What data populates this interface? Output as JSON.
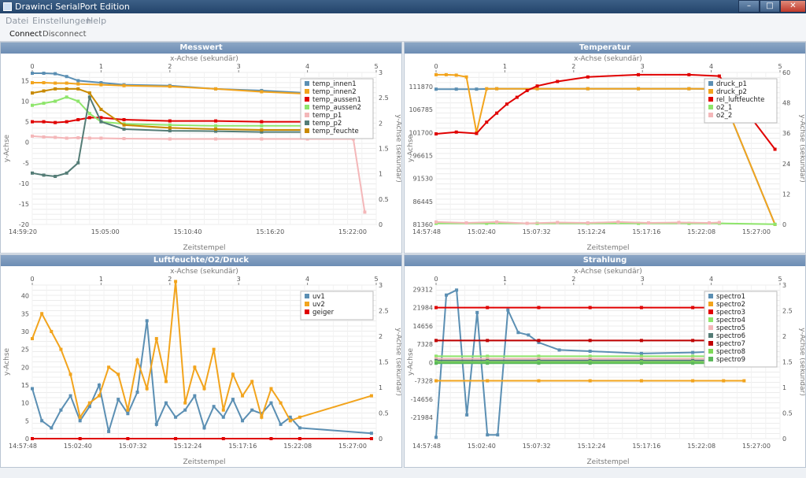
{
  "window": {
    "title": "Drawinci SerialPort Edition",
    "minimize": "–",
    "maximize": "□",
    "close": "✕"
  },
  "menu": {
    "items": [
      "Datei",
      "Einstellungen",
      "Help"
    ]
  },
  "toolbar": {
    "connect": "Connect",
    "disconnect": "Disconnect"
  },
  "panels": [
    {
      "title": "Messwert",
      "chart_data": {
        "type": "line",
        "title": "Messwert",
        "x2label": "x-Achse (sekundär)",
        "x2ticks": [
          "0",
          "1",
          "2",
          "3",
          "4",
          "5"
        ],
        "xlabel": "Zeitstempel",
        "xticks": [
          "14:59:20",
          "15:05:00",
          "15:10:40",
          "15:16:20",
          "15:22:00"
        ],
        "ylabel": "y-Achse",
        "yticks": [
          "-20",
          "-15",
          "-10",
          "-5",
          "0",
          "5",
          "10",
          "15"
        ],
        "ylim": [
          -20,
          17
        ],
        "y2label": "y-Achse (sekundär)",
        "y2ticks": [
          "0",
          "0.5",
          "1",
          "1.5",
          "2",
          "2.5",
          "3"
        ],
        "x_range_minutes": [
          0,
          30
        ],
        "legend": "top-right",
        "grid": true,
        "series": [
          {
            "name": "temp_innen1",
            "color": "#5b8fb3",
            "x": [
              0,
              1,
              2,
              3,
              4,
              6,
              8,
              12,
              16,
              20,
              24,
              28
            ],
            "y": [
              16.8,
              16.8,
              16.7,
              16,
              15,
              14.5,
              14,
              13.8,
              13,
              12.6,
              12,
              11.6
            ]
          },
          {
            "name": "temp_innen2",
            "color": "#f2a41d",
            "x": [
              0,
              1,
              2,
              3,
              4,
              6,
              8,
              12,
              16,
              20,
              24,
              28
            ],
            "y": [
              14.5,
              14.5,
              14.4,
              14.4,
              14.2,
              14,
              13.8,
              13.6,
              13,
              12.3,
              11.8,
              11.6
            ]
          },
          {
            "name": "temp_aussen1",
            "color": "#e00000",
            "x": [
              0,
              1,
              2,
              3,
              4,
              5,
              6,
              8,
              12,
              16,
              20,
              24,
              28
            ],
            "y": [
              5,
              5,
              4.8,
              5,
              5.5,
              6,
              6,
              5.5,
              5.2,
              5.2,
              5,
              5,
              5
            ]
          },
          {
            "name": "temp_aussen2",
            "color": "#8ee56b",
            "x": [
              0,
              1,
              2,
              3,
              4,
              5,
              6,
              8,
              12,
              16,
              20,
              24,
              28
            ],
            "y": [
              9,
              9.5,
              10,
              11,
              10,
              7,
              5,
              4.5,
              4.2,
              4,
              4,
              4,
              4
            ]
          },
          {
            "name": "temp_p1",
            "color": "#f4b7b9",
            "x": [
              0,
              1,
              2,
              3,
              4,
              5,
              6,
              8,
              12,
              16,
              20,
              24,
              28,
              29
            ],
            "y": [
              1.5,
              1.3,
              1.2,
              1,
              1.1,
              1,
              1,
              0.9,
              0.8,
              0.8,
              0.8,
              0.8,
              0.8,
              -17
            ]
          },
          {
            "name": "temp_p2",
            "color": "#547c76",
            "x": [
              0,
              1,
              2,
              3,
              4,
              5,
              6,
              8,
              12,
              16,
              20,
              24,
              28
            ],
            "y": [
              -7.5,
              -8,
              -8.3,
              -7.5,
              -5,
              11,
              5,
              3.2,
              2.8,
              2.7,
              2.5,
              2.5,
              2.5
            ]
          },
          {
            "name": "temp_feuchte",
            "color": "#c98a00",
            "x": [
              0,
              1,
              2,
              3,
              4,
              5,
              6,
              8,
              12,
              16,
              20,
              24,
              28
            ],
            "y": [
              12,
              12.5,
              13,
              13,
              13,
              12,
              8,
              4.2,
              3.5,
              3.2,
              3,
              3,
              3
            ]
          }
        ]
      }
    },
    {
      "title": "Temperatur",
      "chart_data": {
        "type": "line",
        "title": "Temperatur",
        "x2label": "x-Achse (sekundär)",
        "x2ticks": [
          "0",
          "1",
          "2",
          "3",
          "4",
          "5"
        ],
        "xlabel": "Zeitstempel",
        "xticks": [
          "14:57:48",
          "15:02:40",
          "15:07:32",
          "15:12:24",
          "15:17:16",
          "15:22:08",
          "15:27:00"
        ],
        "ylabel": "y-Achse",
        "yticks": [
          "81360",
          "86445",
          "91530",
          "96615",
          "101700",
          "106785",
          "111870"
        ],
        "ylim": [
          81360,
          115000
        ],
        "y2label": "y-Achse (sekundär)",
        "y2ticks": [
          "0",
          "12",
          "24",
          "36",
          "48",
          "60"
        ],
        "x_range_minutes": [
          0,
          34
        ],
        "legend": "top-right",
        "grid": true,
        "series": [
          {
            "name": "druck_p1",
            "color": "#5b8fb3",
            "x": [
              0,
              2,
              4,
              6,
              10,
              15,
              20,
              25,
              28,
              33.5
            ],
            "y": [
              111300,
              111300,
              111300,
              111400,
              111400,
              111400,
              111400,
              111400,
              111300,
              81360
            ]
          },
          {
            "name": "druck_p2",
            "color": "#f2a41d",
            "x": [
              0,
              1,
              2,
              3,
              4,
              5,
              6,
              10,
              15,
              20,
              25,
              28,
              33.5
            ],
            "y": [
              114500,
              114500,
              114400,
              114000,
              101700,
              111400,
              111400,
              111400,
              111400,
              111400,
              111400,
              111400,
              81360
            ]
          },
          {
            "name": "rel_luftfeuchte",
            "color": "#e00000",
            "x": [
              0,
              2,
              4,
              5,
              6,
              7,
              8,
              9,
              10,
              12,
              15,
              20,
              25,
              28,
              33.5
            ],
            "y": [
              101400,
              101800,
              101500,
              104000,
              106000,
              108000,
              109500,
              111000,
              112000,
              113000,
              114000,
              114500,
              114500,
              114200,
              98000
            ]
          },
          {
            "name": "o2_1",
            "color": "#8ee56b",
            "x": [
              0,
              5,
              10,
              15,
              20,
              25,
              28,
              33.5
            ],
            "y": [
              81600,
              81600,
              81600,
              81600,
              81600,
              81600,
              81600,
              81400
            ]
          },
          {
            "name": "o2_2",
            "color": "#f4b7b9",
            "x": [
              0,
              3,
              6,
              9,
              12,
              15,
              18,
              21,
              24,
              27,
              28
            ],
            "y": [
              81900,
              81700,
              81900,
              81600,
              81800,
              81700,
              81900,
              81700,
              81800,
              81700,
              81800
            ]
          }
        ]
      }
    },
    {
      "title": "Luftfeuchte/O2/Druck",
      "chart_data": {
        "type": "line",
        "title": "Luftfeuchte/O2/Druck",
        "x2label": "x-Achse (sekundär)",
        "x2ticks": [
          "0",
          "1",
          "2",
          "3",
          "4",
          "5"
        ],
        "xlabel": "Zeitstempel",
        "xticks": [
          "14:57:48",
          "15:02:40",
          "15:07:32",
          "15:12:24",
          "15:17:16",
          "15:22:08",
          "15:27:00"
        ],
        "ylabel": "y-Achse",
        "yticks": [
          "0",
          "5",
          "10",
          "15",
          "20",
          "25",
          "30",
          "35",
          "40"
        ],
        "ylim": [
          0,
          43
        ],
        "y2label": "y-Achse (sekundär)",
        "y2ticks": [
          "0",
          "0.5",
          "1",
          "1.5",
          "2",
          "2.5",
          "3"
        ],
        "x_range_minutes": [
          0,
          36
        ],
        "legend": "top-right",
        "grid": true,
        "series": [
          {
            "name": "uv1",
            "color": "#5b8fb3",
            "x": [
              0,
              1,
              2,
              3,
              4,
              5,
              6,
              7,
              8,
              9,
              10,
              11,
              12,
              13,
              14,
              15,
              16,
              17,
              18,
              19,
              20,
              21,
              22,
              23,
              24,
              25,
              26,
              27,
              28,
              35.5
            ],
            "y": [
              14,
              5,
              3,
              8,
              12,
              5,
              9,
              15,
              2,
              11,
              7,
              13,
              33,
              4,
              10,
              6,
              8,
              12,
              3,
              9,
              6,
              11,
              5,
              8,
              7,
              10,
              4,
              6,
              3,
              1.5
            ]
          },
          {
            "name": "uv2",
            "color": "#f2a41d",
            "x": [
              0,
              1,
              2,
              3,
              4,
              5,
              6,
              7,
              8,
              9,
              10,
              11,
              12,
              13,
              14,
              15,
              16,
              17,
              18,
              19,
              20,
              21,
              22,
              23,
              24,
              25,
              26,
              27,
              28,
              35.5
            ],
            "y": [
              28,
              35,
              30,
              25,
              18,
              6,
              10,
              12,
              20,
              18,
              8,
              22,
              14,
              28,
              16,
              44,
              10,
              20,
              14,
              25,
              8,
              18,
              12,
              16,
              6,
              14,
              10,
              5,
              6,
              12
            ]
          },
          {
            "name": "geiger",
            "color": "#e00000",
            "x": [
              0,
              5,
              10,
              15,
              20,
              25,
              28,
              35.5
            ],
            "y": [
              0,
              0,
              0,
              0,
              0,
              0,
              0,
              0
            ]
          }
        ]
      }
    },
    {
      "title": "Strahlung",
      "chart_data": {
        "type": "line",
        "title": "Strahlung",
        "x2label": "x-Achse (sekundär)",
        "x2ticks": [
          "0",
          "1",
          "2",
          "3",
          "4",
          "5"
        ],
        "xlabel": "Zeitstempel",
        "xticks": [
          "14:57:48",
          "15:02:40",
          "15:07:32",
          "15:12:24",
          "15:17:16",
          "15:22:08",
          "15:27:00"
        ],
        "ylabel": "y-Achse",
        "yticks": [
          "-21984",
          "-14656",
          "-7328",
          "0",
          "7328",
          "14656",
          "21984",
          "29312"
        ],
        "ylim": [
          -30500,
          31000
        ],
        "y2label": "y-Achse (sekundär)",
        "y2ticks": [
          "0",
          "0.5",
          "1",
          "1.5",
          "2",
          "2.5",
          "3"
        ],
        "x_range_minutes": [
          0,
          33.5
        ],
        "legend": "top-right",
        "grid": true,
        "series": [
          {
            "name": "spectro1",
            "color": "#5b8fb3",
            "x": [
              0,
              1,
              2,
              3,
              4,
              5,
              6,
              7,
              8,
              9,
              10,
              12,
              15,
              20,
              25,
              28,
              30,
              33
            ],
            "y": [
              -30000,
              27000,
              29000,
              -21000,
              20000,
              -29000,
              -29000,
              21000,
              12000,
              11000,
              8000,
              5000,
              4500,
              3600,
              4000,
              4500,
              5000,
              3000
            ]
          },
          {
            "name": "spectro2",
            "color": "#f2a41d",
            "x": [
              0,
              5,
              10,
              15,
              20,
              25,
              28,
              30
            ],
            "y": [
              -7328,
              -7328,
              -7328,
              -7328,
              -7328,
              -7328,
              -7328,
              -7328
            ]
          },
          {
            "name": "spectro3",
            "color": "#e00000",
            "x": [
              0,
              5,
              10,
              15,
              20,
              25,
              28,
              30
            ],
            "y": [
              21984,
              21984,
              21984,
              21984,
              21984,
              21984,
              21984,
              21984
            ]
          },
          {
            "name": "spectro4",
            "color": "#8ee56b",
            "x": [
              0,
              5,
              10,
              15,
              20,
              25,
              28,
              30
            ],
            "y": [
              2500,
              2500,
              2500,
              2500,
              2500,
              2500,
              2500,
              2500
            ]
          },
          {
            "name": "spectro5",
            "color": "#f4b7b9",
            "x": [
              0,
              5,
              10,
              15,
              20,
              25,
              28,
              30
            ],
            "y": [
              1500,
              1500,
              1500,
              1500,
              1500,
              1500,
              1500,
              1500
            ]
          },
          {
            "name": "spectro6",
            "color": "#547c76",
            "x": [
              0,
              5,
              10,
              15,
              20,
              25,
              28,
              30
            ],
            "y": [
              800,
              800,
              800,
              800,
              800,
              800,
              800,
              800
            ]
          },
          {
            "name": "spectro7",
            "color": "#c00000",
            "x": [
              0,
              5,
              10,
              15,
              20,
              25,
              28,
              30
            ],
            "y": [
              8800,
              8800,
              8800,
              8800,
              8800,
              8800,
              8800,
              8800
            ]
          },
          {
            "name": "spectro8",
            "color": "#7ed957",
            "x": [
              0,
              5,
              10,
              15,
              20,
              25,
              28,
              30
            ],
            "y": [
              200,
              200,
              200,
              200,
              200,
              200,
              200,
              200
            ]
          },
          {
            "name": "spectro9",
            "color": "#5cb85c",
            "x": [
              0,
              5,
              10,
              15,
              20,
              25,
              28,
              30
            ],
            "y": [
              -300,
              -300,
              -300,
              -300,
              -300,
              -300,
              -300,
              -300
            ]
          }
        ]
      }
    }
  ]
}
